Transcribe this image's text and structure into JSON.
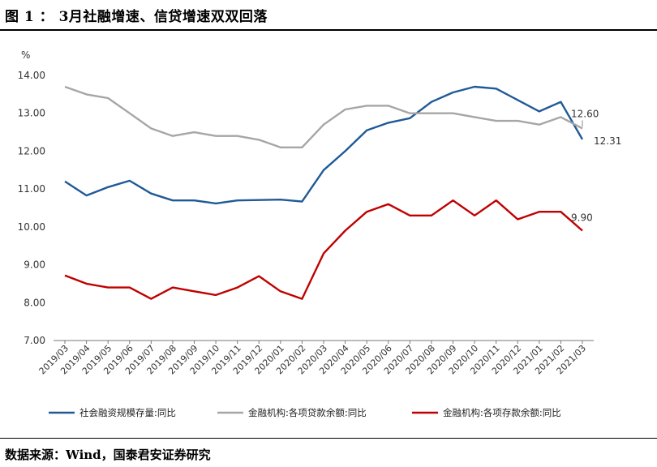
{
  "header": {
    "title": "图 1 ： 3月社融增速、信贷增速双双回落"
  },
  "footer": {
    "source": "数据来源：Wind，国泰君安证券研究"
  },
  "chart_data": {
    "type": "line",
    "ylabel": "%",
    "ylim": [
      7.0,
      14.0
    ],
    "yticks": [
      "7.00",
      "8.00",
      "9.00",
      "10.00",
      "11.00",
      "12.00",
      "13.00",
      "14.00"
    ],
    "grid": false,
    "legend_position": "bottom",
    "categories": [
      "2019/03",
      "2019/04",
      "2019/05",
      "2019/06",
      "2019/07",
      "2019/08",
      "2019/09",
      "2019/10",
      "2019/11",
      "2019/12",
      "2020/01",
      "2020/02",
      "2020/03",
      "2020/04",
      "2020/05",
      "2020/06",
      "2020/07",
      "2020/08",
      "2020/09",
      "2020/10",
      "2020/11",
      "2020/12",
      "2021/01",
      "2021/02",
      "2021/03"
    ],
    "series": [
      {
        "name": "社会融资规模存量:同比",
        "color": "#1f5a96",
        "values": [
          11.2,
          10.83,
          11.05,
          11.22,
          10.88,
          10.7,
          10.7,
          10.62,
          10.7,
          10.71,
          10.72,
          10.67,
          11.5,
          12.0,
          12.55,
          12.75,
          12.87,
          13.3,
          13.55,
          13.7,
          13.65,
          13.35,
          13.05,
          13.3,
          12.31
        ]
      },
      {
        "name": "金融机构:各项贷款余额:同比",
        "color": "#a6a6a6",
        "values": [
          13.7,
          13.5,
          13.4,
          13.0,
          12.6,
          12.4,
          12.5,
          12.4,
          12.4,
          12.3,
          12.1,
          12.1,
          12.7,
          13.1,
          13.2,
          13.2,
          13.0,
          13.0,
          13.0,
          12.9,
          12.8,
          12.8,
          12.7,
          12.9,
          12.6
        ]
      },
      {
        "name": "金融机构:各项存款余额:同比",
        "color": "#c00000",
        "values": [
          8.72,
          8.5,
          8.4,
          8.4,
          8.1,
          8.4,
          8.3,
          8.2,
          8.4,
          8.7,
          8.3,
          8.1,
          9.3,
          9.9,
          10.4,
          10.6,
          10.3,
          10.3,
          10.7,
          10.3,
          10.7,
          10.2,
          10.4,
          10.4,
          9.9
        ]
      }
    ],
    "annotations": [
      {
        "series": 1,
        "label": "12.60"
      },
      {
        "series": 0,
        "label": "12.31"
      },
      {
        "series": 2,
        "label": "9.90"
      }
    ]
  }
}
